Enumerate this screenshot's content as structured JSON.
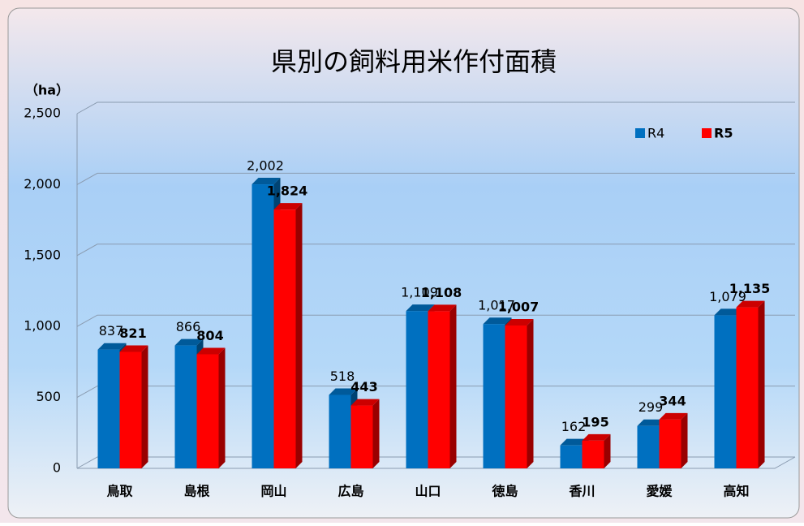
{
  "chart_data": {
    "type": "bar",
    "title": "県別の飼料用米作付面積",
    "y_label": "（ha）",
    "categories": [
      "鳥取",
      "島根",
      "岡山",
      "広島",
      "山口",
      "徳島",
      "香川",
      "愛媛",
      "高知"
    ],
    "series": [
      {
        "name": "R4",
        "color": "#0070c0",
        "values": [
          837,
          866,
          2002,
          518,
          1109,
          1017,
          162,
          299,
          1079
        ],
        "value_labels": [
          "837",
          "866",
          "2,002",
          "518",
          "1,109",
          "1,017",
          "162",
          "299",
          "1,079"
        ]
      },
      {
        "name": "R5",
        "color": "#ff0000",
        "values": [
          821,
          804,
          1824,
          443,
          1108,
          1007,
          195,
          344,
          1135
        ],
        "value_labels": [
          "821",
          "804",
          "1,824",
          "443",
          "1,108",
          "1,007",
          "195",
          "344",
          "1,135"
        ]
      }
    ],
    "ylim": [
      0,
      2500
    ],
    "yticks": [
      0,
      500,
      {
        "value": 1000,
        "label": "1,000"
      },
      {
        "value": 1500,
        "label": "1,500"
      },
      {
        "value": 2000,
        "label": "2,000"
      },
      {
        "value": 2500,
        "label": "2,500"
      }
    ],
    "grid": true,
    "legend": "upper right"
  }
}
